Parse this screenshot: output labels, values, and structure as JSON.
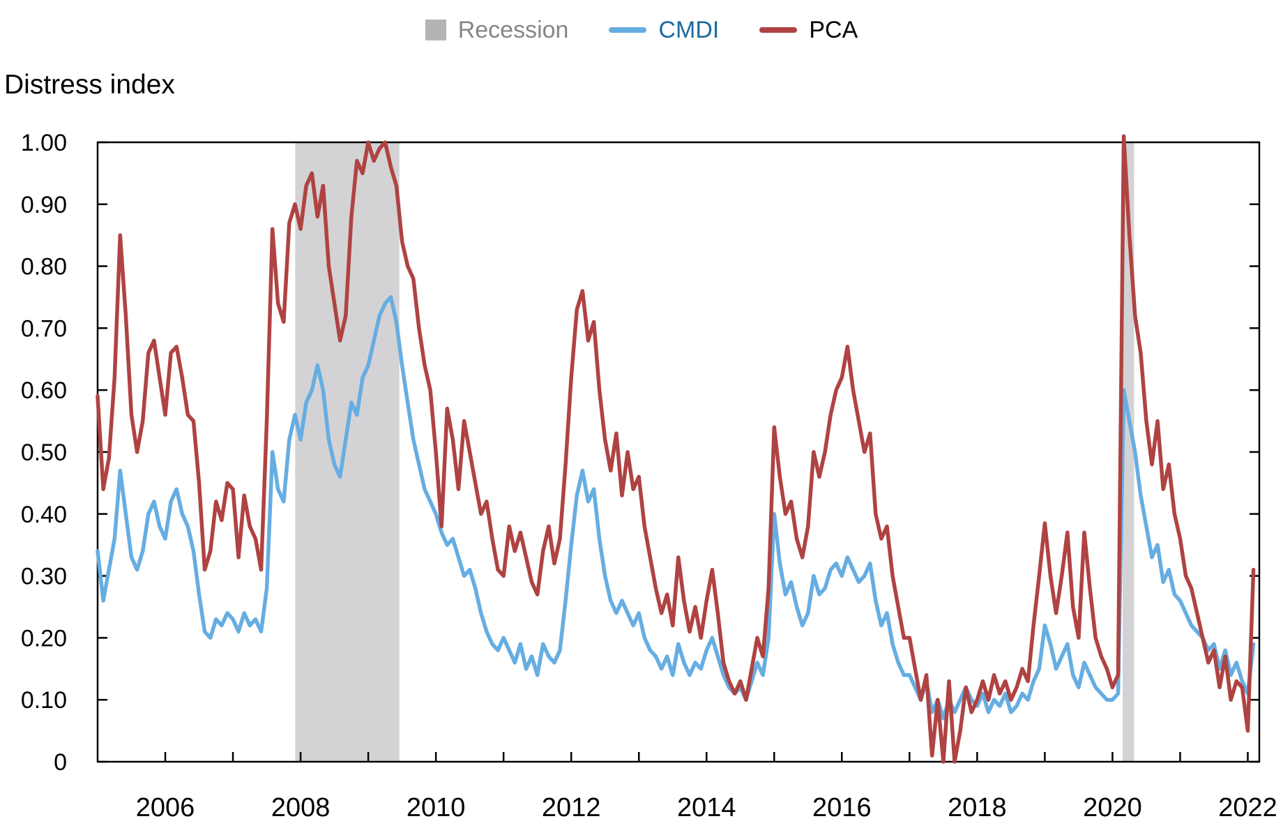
{
  "figure": {
    "title": "Distress index"
  },
  "legend": {
    "items": [
      {
        "label": "Recession",
        "swatch": "square",
        "color": "#B4B4B6",
        "text_color": "#85868A"
      },
      {
        "label": "CMDI",
        "swatch": "line",
        "color": "#66ADE2",
        "text_color": "#1B6B9E"
      },
      {
        "label": "PCA",
        "swatch": "line",
        "color": "#AF4342",
        "text_color": "#000000"
      }
    ]
  },
  "chart_data": {
    "type": "line",
    "title": "Distress index",
    "xlabel": "",
    "ylabel": "Distress index",
    "grid": false,
    "legend_position": "top-center",
    "band_color": "#D3D3D5",
    "axis_color": "#000000",
    "x_axis": {
      "lim": [
        2005.0,
        2022.17
      ],
      "tick_years": [
        2006,
        2007,
        2008,
        2009,
        2010,
        2011,
        2012,
        2013,
        2014,
        2015,
        2016,
        2017,
        2018,
        2019,
        2020,
        2021,
        2022
      ],
      "label_ticks": [
        {
          "year": 2006,
          "label": "2006"
        },
        {
          "year": 2008,
          "label": "2008"
        },
        {
          "year": 2010,
          "label": "2010"
        },
        {
          "year": 2012,
          "label": "2012"
        },
        {
          "year": 2014,
          "label": "2014"
        },
        {
          "year": 2016,
          "label": "2016"
        },
        {
          "year": 2018,
          "label": "2018"
        },
        {
          "year": 2020,
          "label": "2020"
        },
        {
          "year": 2022,
          "label": "2022"
        }
      ]
    },
    "y_axis": {
      "lim": [
        0,
        1.0
      ],
      "ticks": [
        {
          "value": 0.0,
          "label": "0"
        },
        {
          "value": 0.1,
          "label": "0.10"
        },
        {
          "value": 0.2,
          "label": "0.20"
        },
        {
          "value": 0.3,
          "label": "0.30"
        },
        {
          "value": 0.4,
          "label": "0.40"
        },
        {
          "value": 0.5,
          "label": "0.50"
        },
        {
          "value": 0.6,
          "label": "0.60"
        },
        {
          "value": 0.7,
          "label": "0.70"
        },
        {
          "value": 0.8,
          "label": "0.80"
        },
        {
          "value": 0.9,
          "label": "0.90"
        },
        {
          "value": 1.0,
          "label": "1.00"
        }
      ]
    },
    "recession_bands": [
      {
        "start": 2007.92,
        "end": 2009.46
      },
      {
        "start": 2020.15,
        "end": 2020.32
      }
    ],
    "x_start": 2005.0,
    "x_step_years": 0.0833333,
    "series": [
      {
        "name": "CMDI",
        "color": "#66ADE2",
        "values": [
          0.34,
          0.26,
          0.31,
          0.36,
          0.47,
          0.4,
          0.33,
          0.31,
          0.34,
          0.4,
          0.42,
          0.38,
          0.36,
          0.42,
          0.44,
          0.4,
          0.38,
          0.34,
          0.27,
          0.21,
          0.2,
          0.23,
          0.22,
          0.24,
          0.23,
          0.21,
          0.24,
          0.22,
          0.23,
          0.21,
          0.28,
          0.5,
          0.44,
          0.42,
          0.52,
          0.56,
          0.52,
          0.58,
          0.6,
          0.64,
          0.6,
          0.52,
          0.48,
          0.46,
          0.52,
          0.58,
          0.56,
          0.62,
          0.64,
          0.68,
          0.72,
          0.74,
          0.75,
          0.71,
          0.64,
          0.58,
          0.52,
          0.48,
          0.44,
          0.42,
          0.4,
          0.37,
          0.35,
          0.36,
          0.33,
          0.3,
          0.31,
          0.28,
          0.24,
          0.21,
          0.19,
          0.18,
          0.2,
          0.18,
          0.16,
          0.19,
          0.15,
          0.17,
          0.14,
          0.19,
          0.17,
          0.16,
          0.18,
          0.26,
          0.35,
          0.43,
          0.47,
          0.42,
          0.44,
          0.36,
          0.3,
          0.26,
          0.24,
          0.26,
          0.24,
          0.22,
          0.24,
          0.2,
          0.18,
          0.17,
          0.15,
          0.17,
          0.14,
          0.19,
          0.16,
          0.14,
          0.16,
          0.15,
          0.18,
          0.2,
          0.17,
          0.14,
          0.12,
          0.11,
          0.12,
          0.1,
          0.13,
          0.16,
          0.14,
          0.2,
          0.4,
          0.32,
          0.27,
          0.29,
          0.25,
          0.22,
          0.24,
          0.3,
          0.27,
          0.28,
          0.31,
          0.32,
          0.3,
          0.33,
          0.31,
          0.29,
          0.3,
          0.32,
          0.26,
          0.22,
          0.24,
          0.19,
          0.16,
          0.14,
          0.14,
          0.12,
          0.1,
          0.13,
          0.08,
          0.1,
          0.07,
          0.1,
          0.08,
          0.1,
          0.12,
          0.1,
          0.09,
          0.11,
          0.08,
          0.1,
          0.09,
          0.11,
          0.08,
          0.09,
          0.11,
          0.1,
          0.13,
          0.15,
          0.22,
          0.19,
          0.15,
          0.17,
          0.19,
          0.14,
          0.12,
          0.16,
          0.14,
          0.12,
          0.11,
          0.1,
          0.1,
          0.11,
          0.6,
          0.55,
          0.5,
          0.43,
          0.38,
          0.33,
          0.35,
          0.29,
          0.31,
          0.27,
          0.26,
          0.24,
          0.22,
          0.21,
          0.2,
          0.18,
          0.19,
          0.15,
          0.18,
          0.14,
          0.16,
          0.13,
          0.11,
          0.19
        ]
      },
      {
        "name": "PCA",
        "color": "#AF4342",
        "values": [
          0.59,
          0.44,
          0.49,
          0.62,
          0.85,
          0.72,
          0.56,
          0.5,
          0.55,
          0.66,
          0.68,
          0.62,
          0.56,
          0.66,
          0.67,
          0.62,
          0.56,
          0.55,
          0.45,
          0.31,
          0.34,
          0.42,
          0.39,
          0.45,
          0.44,
          0.33,
          0.43,
          0.38,
          0.36,
          0.31,
          0.55,
          0.86,
          0.74,
          0.71,
          0.87,
          0.9,
          0.86,
          0.93,
          0.95,
          0.88,
          0.93,
          0.8,
          0.74,
          0.68,
          0.72,
          0.88,
          0.97,
          0.95,
          1.0,
          0.97,
          0.99,
          1.0,
          0.96,
          0.93,
          0.84,
          0.8,
          0.78,
          0.7,
          0.64,
          0.6,
          0.5,
          0.38,
          0.57,
          0.52,
          0.44,
          0.55,
          0.5,
          0.45,
          0.4,
          0.42,
          0.36,
          0.31,
          0.3,
          0.38,
          0.34,
          0.37,
          0.33,
          0.29,
          0.27,
          0.34,
          0.38,
          0.32,
          0.36,
          0.48,
          0.62,
          0.73,
          0.76,
          0.68,
          0.71,
          0.6,
          0.52,
          0.47,
          0.53,
          0.43,
          0.5,
          0.44,
          0.46,
          0.38,
          0.33,
          0.28,
          0.24,
          0.27,
          0.22,
          0.33,
          0.26,
          0.21,
          0.25,
          0.2,
          0.26,
          0.31,
          0.24,
          0.16,
          0.13,
          0.11,
          0.13,
          0.1,
          0.15,
          0.2,
          0.17,
          0.28,
          0.54,
          0.46,
          0.4,
          0.42,
          0.36,
          0.33,
          0.38,
          0.5,
          0.46,
          0.5,
          0.56,
          0.6,
          0.62,
          0.67,
          0.6,
          0.55,
          0.5,
          0.53,
          0.4,
          0.36,
          0.38,
          0.3,
          0.25,
          0.2,
          0.2,
          0.15,
          0.1,
          0.14,
          0.01,
          0.1,
          0.0,
          0.13,
          0.0,
          0.05,
          0.12,
          0.08,
          0.1,
          0.13,
          0.1,
          0.14,
          0.11,
          0.13,
          0.1,
          0.12,
          0.15,
          0.13,
          0.22,
          0.3,
          0.385,
          0.3,
          0.24,
          0.3,
          0.37,
          0.25,
          0.2,
          0.37,
          0.28,
          0.2,
          0.17,
          0.15,
          0.12,
          0.14,
          1.01,
          0.85,
          0.72,
          0.66,
          0.55,
          0.48,
          0.55,
          0.44,
          0.48,
          0.4,
          0.36,
          0.3,
          0.28,
          0.24,
          0.2,
          0.16,
          0.18,
          0.12,
          0.17,
          0.1,
          0.13,
          0.12,
          0.05,
          0.31
        ]
      }
    ]
  }
}
